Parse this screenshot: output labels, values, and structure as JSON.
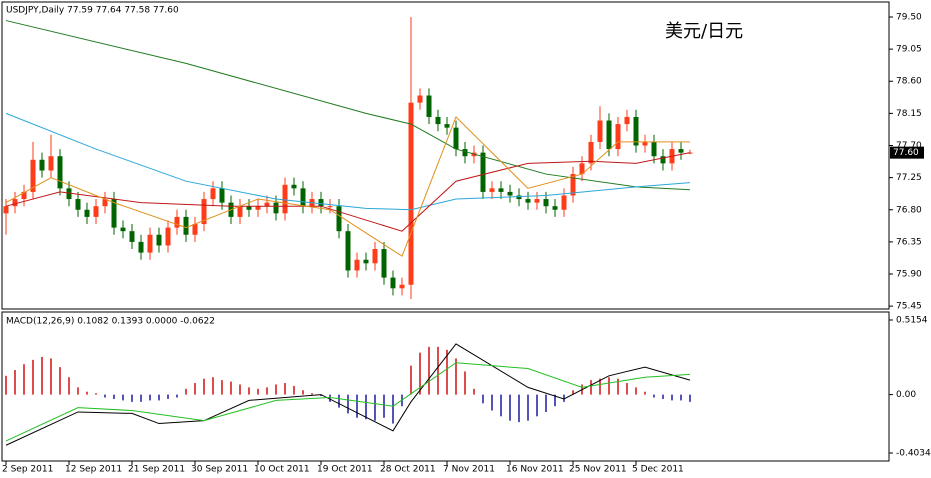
{
  "chart_data": [
    {
      "type": "candlestick",
      "header": "USDJPY,Daily  77.59 77.64 77.58 77.60",
      "annotation": "美元/日元",
      "up_color": "#ff3b1a",
      "down_color": "#006400",
      "categories": [
        "2 Sep 2011",
        null,
        null,
        null,
        null,
        null,
        null,
        "12 Sep 2011",
        null,
        null,
        null,
        null,
        null,
        null,
        "21 Sep 2011",
        null,
        null,
        null,
        null,
        null,
        null,
        "30 Sep 2011",
        null,
        null,
        null,
        null,
        null,
        null,
        "10 Oct 2011",
        null,
        null,
        null,
        null,
        null,
        null,
        "19 Oct 2011",
        null,
        null,
        null,
        null,
        null,
        null,
        "28 Oct 2011",
        null,
        null,
        null,
        null,
        null,
        null,
        "7 Nov 2011",
        null,
        null,
        null,
        null,
        null,
        null,
        "16 Nov 2011",
        null,
        null,
        null,
        null,
        null,
        null,
        "25 Nov 2011",
        null,
        null,
        null,
        null,
        null,
        null,
        "5 Dec 2011",
        null,
        null,
        null,
        null,
        null,
        null
      ],
      "open": [
        76.75,
        76.85,
        76.95,
        77.05,
        77.5,
        77.35,
        77.55,
        77.1,
        76.95,
        76.8,
        76.7,
        76.85,
        76.95,
        76.55,
        76.5,
        76.35,
        76.2,
        76.45,
        76.3,
        76.55,
        76.7,
        76.45,
        76.6,
        76.95,
        77.1,
        76.9,
        76.7,
        76.85,
        76.8,
        76.85,
        76.9,
        76.75,
        77.15,
        77.1,
        76.85,
        76.95,
        76.85,
        76.85,
        76.5,
        75.95,
        76.1,
        76.05,
        76.25,
        75.85,
        75.7,
        75.75,
        78.3,
        78.4,
        78.1,
        78.0,
        77.95,
        77.65,
        77.55,
        77.6,
        77.05,
        77.1,
        77.05,
        77.0,
        76.95,
        76.9,
        76.95,
        76.85,
        76.8,
        77.0,
        77.3,
        77.45,
        77.75,
        78.05,
        77.65,
        78.0,
        78.1,
        77.7,
        77.75,
        77.55,
        77.45,
        77.65,
        77.59
      ],
      "high": [
        76.95,
        77.05,
        77.15,
        77.75,
        77.6,
        77.85,
        77.65,
        77.2,
        77.05,
        76.9,
        76.95,
        77.05,
        77.05,
        76.65,
        76.6,
        76.45,
        76.55,
        76.55,
        76.65,
        76.8,
        76.8,
        76.7,
        77.05,
        77.2,
        77.2,
        77.0,
        76.95,
        76.95,
        76.95,
        77.0,
        77.0,
        77.25,
        77.25,
        77.2,
        77.05,
        77.05,
        76.95,
        76.95,
        76.6,
        76.2,
        76.2,
        76.35,
        76.35,
        75.95,
        75.85,
        79.5,
        78.5,
        78.5,
        78.2,
        78.1,
        78.05,
        77.75,
        77.7,
        77.7,
        77.2,
        77.2,
        77.15,
        77.1,
        77.05,
        77.05,
        77.05,
        76.95,
        77.1,
        77.4,
        77.55,
        77.85,
        78.25,
        78.15,
        78.1,
        78.2,
        78.2,
        77.85,
        77.85,
        77.65,
        77.75,
        77.75,
        77.64
      ],
      "low": [
        76.45,
        76.75,
        76.85,
        76.95,
        77.25,
        77.25,
        77.0,
        76.85,
        76.7,
        76.6,
        76.6,
        76.75,
        76.45,
        76.4,
        76.25,
        76.1,
        76.1,
        76.2,
        76.2,
        76.45,
        76.35,
        76.35,
        76.5,
        76.85,
        76.8,
        76.6,
        76.6,
        76.7,
        76.7,
        76.75,
        76.65,
        76.65,
        77.0,
        76.75,
        76.75,
        76.75,
        76.75,
        76.4,
        75.85,
        75.85,
        75.95,
        75.95,
        75.75,
        75.6,
        75.6,
        75.55,
        78.2,
        78.0,
        77.9,
        77.85,
        77.55,
        77.45,
        77.45,
        76.95,
        76.95,
        76.95,
        76.9,
        76.85,
        76.8,
        76.8,
        76.75,
        76.7,
        76.7,
        76.9,
        77.2,
        77.35,
        77.65,
        77.55,
        77.55,
        77.9,
        77.6,
        77.6,
        77.45,
        77.35,
        77.35,
        77.5,
        77.58
      ],
      "close": [
        76.85,
        76.95,
        77.05,
        77.5,
        77.35,
        77.55,
        77.1,
        76.95,
        76.8,
        76.7,
        76.85,
        76.95,
        76.55,
        76.5,
        76.35,
        76.2,
        76.45,
        76.3,
        76.55,
        76.7,
        76.45,
        76.6,
        76.95,
        77.1,
        76.9,
        76.7,
        76.85,
        76.8,
        76.85,
        76.9,
        76.75,
        77.15,
        77.1,
        76.85,
        76.95,
        76.85,
        76.85,
        76.5,
        75.95,
        76.1,
        76.05,
        76.25,
        75.85,
        75.7,
        75.75,
        78.3,
        78.4,
        78.1,
        78.0,
        77.95,
        77.65,
        77.55,
        77.6,
        77.05,
        77.1,
        77.05,
        77.0,
        76.95,
        76.9,
        76.95,
        76.85,
        76.8,
        77.0,
        77.3,
        77.45,
        77.75,
        78.05,
        77.65,
        78.0,
        78.1,
        77.7,
        77.75,
        77.55,
        77.45,
        77.65,
        77.6,
        77.6
      ],
      "series": [
        {
          "color": "#1f7a1f",
          "x": [
            0,
            20,
            40,
            45,
            50,
            60,
            70,
            76
          ],
          "values": [
            79.45,
            78.85,
            78.15,
            78.0,
            77.65,
            77.3,
            77.12,
            77.08
          ]
        },
        {
          "color": "#2aa7d8",
          "x": [
            0,
            10,
            20,
            30,
            40,
            45,
            50,
            60,
            70,
            76
          ],
          "values": [
            78.15,
            77.65,
            77.2,
            76.95,
            76.82,
            76.8,
            76.95,
            77.0,
            77.12,
            77.18
          ]
        },
        {
          "color": "#c01818",
          "x": [
            0,
            6,
            15,
            25,
            35,
            44,
            50,
            58,
            65,
            70,
            76
          ],
          "values": [
            76.85,
            77.05,
            76.9,
            76.85,
            76.85,
            76.5,
            77.2,
            77.45,
            77.48,
            77.45,
            77.6
          ]
        },
        {
          "color": "#e0901a",
          "x": [
            0,
            5,
            12,
            20,
            28,
            36,
            44,
            50,
            58,
            64,
            68,
            76
          ],
          "values": [
            76.9,
            77.25,
            76.9,
            76.55,
            76.95,
            76.8,
            76.15,
            78.1,
            77.1,
            77.3,
            77.75,
            77.75
          ]
        }
      ],
      "last_price": {
        "value": 77.6,
        "label": "77.60"
      },
      "ylim": [
        75.41,
        79.71
      ],
      "yticks": [
        {
          "value": 79.5,
          "label": "79.50"
        },
        79.05,
        {
          "value": 78.6,
          "label": "78.60"
        },
        78.15,
        {
          "value": 77.7,
          "label": "77.70"
        },
        77.25,
        {
          "value": 76.8,
          "label": "76.80"
        },
        76.35,
        {
          "value": 75.9,
          "label": "75.90"
        },
        75.45
      ]
    },
    {
      "type": "macd",
      "header": "MACD(12,26,9) 0.1082 0.1393 0.0000 -0.0622",
      "up_color": "#d01010",
      "down_color": "#1a1aa0",
      "histogram": [
        0.13,
        0.17,
        0.21,
        0.24,
        0.26,
        0.25,
        0.19,
        0.12,
        0.05,
        0.02,
        0.01,
        -0.02,
        -0.03,
        -0.04,
        -0.05,
        -0.05,
        -0.04,
        -0.04,
        -0.03,
        -0.02,
        0.04,
        0.08,
        0.11,
        0.12,
        0.1,
        0.09,
        0.07,
        0.05,
        0.04,
        0.05,
        0.07,
        0.08,
        0.06,
        0.03,
        0.01,
        -0.01,
        -0.05,
        -0.09,
        -0.13,
        -0.16,
        -0.17,
        -0.18,
        -0.16,
        -0.2,
        -0.08,
        0.2,
        0.29,
        0.33,
        0.33,
        0.31,
        0.25,
        0.16,
        0.04,
        -0.06,
        -0.11,
        -0.15,
        -0.18,
        -0.19,
        -0.18,
        -0.15,
        -0.12,
        -0.08,
        -0.05,
        0.03,
        0.07,
        0.1,
        0.11,
        0.12,
        0.11,
        0.08,
        0.05,
        0.02,
        -0.02,
        -0.03,
        -0.04,
        -0.04,
        -0.05
      ],
      "series": [
        {
          "color": "#000000",
          "x": [
            0,
            8,
            14,
            17,
            22,
            27,
            35,
            43,
            45,
            50,
            58,
            62,
            67,
            71,
            76
          ],
          "values": [
            -0.35,
            -0.12,
            -0.13,
            -0.2,
            -0.18,
            -0.04,
            0.0,
            -0.25,
            -0.05,
            0.35,
            0.05,
            -0.03,
            0.13,
            0.19,
            0.1
          ]
        },
        {
          "color": "#22c022",
          "x": [
            0,
            8,
            14,
            22,
            30,
            36,
            43,
            50,
            58,
            64,
            71,
            76
          ],
          "values": [
            -0.32,
            -0.09,
            -0.11,
            -0.18,
            -0.04,
            -0.02,
            -0.08,
            0.22,
            0.18,
            0.05,
            0.12,
            0.14
          ]
        }
      ],
      "ylim": [
        -0.4587,
        0.5707
      ],
      "yticks": [
        0.5154,
        {
          "value": 0,
          "label": "0.00"
        },
        -0.4034
      ]
    }
  ]
}
